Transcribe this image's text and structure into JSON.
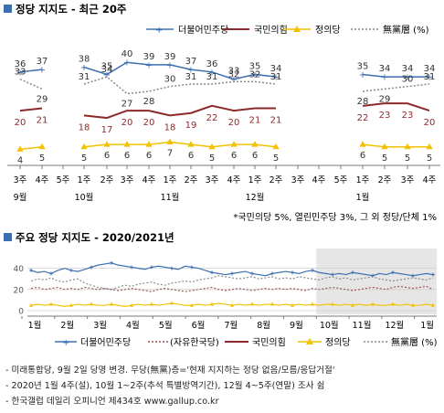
{
  "chart_data": [
    {
      "type": "line",
      "title": "정당 지지도 - 최근 20주",
      "note": "*국민의당 5%, 열린민주당 3%, 그 외 정당/단체 1%",
      "x_week_labels": [
        "3주",
        "4주",
        "5주",
        "1주",
        "2주",
        "3주",
        "4주",
        "1주",
        "2주",
        "3주",
        "4주",
        "1주",
        "2주",
        "3주",
        "4주",
        "5주",
        "1주",
        "2주",
        "3주",
        "4주"
      ],
      "x_month_labels": [
        {
          "at": 0,
          "label": "9월"
        },
        {
          "at": 3,
          "label": "10월"
        },
        {
          "at": 7,
          "label": "11월"
        },
        {
          "at": 11,
          "label": "12월"
        },
        {
          "at": 16,
          "label": "1월"
        }
      ],
      "x_gaps_after": [
        6,
        13
      ],
      "ylim": [
        0,
        45
      ],
      "series": [
        {
          "name": "더불어민주당",
          "color": "#3d6fb0",
          "marker": "plus",
          "values": [
            36,
            37,
            null,
            38,
            35,
            40,
            39,
            39,
            37,
            36,
            33,
            35,
            34,
            null,
            null,
            null,
            35,
            34,
            34,
            34
          ],
          "labels": [
            36,
            37,
            null,
            38,
            35,
            40,
            39,
            39,
            37,
            36,
            33,
            35,
            34,
            null,
            null,
            null,
            35,
            34,
            34,
            34
          ]
        },
        {
          "name": "국민의힘",
          "color": "#8c2a2a",
          "marker": "none",
          "values": [
            20,
            21,
            null,
            18,
            17,
            20,
            20,
            18,
            19,
            22,
            20,
            21,
            21,
            null,
            null,
            null,
            22,
            23,
            23,
            20
          ],
          "labels": [
            20,
            21,
            null,
            18,
            17,
            20,
            20,
            18,
            19,
            22,
            20,
            21,
            21,
            null,
            null,
            null,
            22,
            23,
            23,
            20
          ]
        },
        {
          "name": "정의당",
          "color": "#f2c200",
          "marker": "triangle",
          "values": [
            4,
            5,
            null,
            5,
            6,
            6,
            6,
            7,
            6,
            5,
            6,
            6,
            5,
            null,
            null,
            null,
            6,
            5,
            5,
            5
          ],
          "labels": [
            4,
            5,
            null,
            5,
            6,
            6,
            6,
            7,
            6,
            5,
            6,
            6,
            5,
            null,
            null,
            null,
            6,
            5,
            5,
            5
          ]
        },
        {
          "name": "無黨層 (%)",
          "color": "#8a8a8a",
          "marker": "none",
          "dash": true,
          "values": [
            33,
            29,
            null,
            31,
            34,
            27,
            28,
            30,
            31,
            31,
            32,
            32,
            31,
            null,
            null,
            null,
            28,
            29,
            30,
            31
          ],
          "labels": [
            33,
            29,
            null,
            31,
            34,
            27,
            28,
            30,
            31,
            31,
            32,
            32,
            31,
            null,
            null,
            null,
            28,
            29,
            30,
            31
          ]
        }
      ]
    },
    {
      "type": "line",
      "title": "주요 정당 지지도 - 2020/2021년",
      "x_month_labels": [
        "1월",
        "2월",
        "3월",
        "4월",
        "5월",
        "6월",
        "7월",
        "8월",
        "9월",
        "10월",
        "11월",
        "12월",
        "1월"
      ],
      "y_ticks": [
        0,
        20,
        40
      ],
      "ylim": [
        0,
        50
      ],
      "highlight_from_month_index": 9,
      "series": [
        {
          "name": "더불어민주당",
          "color": "#3d6fb0",
          "values": [
            38,
            36,
            37,
            35,
            38,
            40,
            38,
            37,
            39,
            41,
            43,
            44,
            45,
            43,
            42,
            41,
            40,
            39,
            41,
            42,
            41,
            40,
            39,
            42,
            41,
            40,
            38,
            36,
            35,
            34,
            35,
            36,
            37,
            35,
            34,
            33,
            35,
            36,
            37,
            36,
            35,
            37,
            38,
            36,
            35,
            34,
            35,
            34,
            36,
            35,
            34,
            33,
            35,
            34,
            36,
            35,
            34,
            33,
            34,
            35,
            34
          ]
        },
        {
          "name": "(자유한국당)",
          "color": "#a05555",
          "dash": true,
          "values": [
            21,
            22,
            20,
            21,
            22,
            20,
            21,
            20,
            22,
            21,
            20,
            21,
            20,
            19,
            20,
            21,
            20,
            19,
            18,
            20,
            21,
            20,
            19,
            18,
            19,
            20,
            21,
            22,
            20,
            19,
            20,
            21,
            20,
            19,
            20,
            21,
            20,
            21,
            20,
            21,
            20,
            19,
            21,
            20,
            21,
            22,
            21,
            20,
            19,
            20,
            21,
            22,
            21,
            20,
            22,
            23,
            22,
            21,
            22,
            23,
            20
          ]
        },
        {
          "name": "국민의힘",
          "color": "#8c2a2a",
          "values": []
        },
        {
          "name": "정의당",
          "color": "#f2c200",
          "values": [
            5,
            6,
            5,
            6,
            5,
            4,
            5,
            6,
            5,
            6,
            5,
            5,
            6,
            5,
            4,
            5,
            6,
            5,
            6,
            5,
            6,
            7,
            6,
            5,
            5,
            6,
            5,
            6,
            7,
            6,
            5,
            6,
            5,
            6,
            5,
            6,
            6,
            5,
            6,
            5,
            6,
            5,
            6,
            5,
            6,
            6,
            5,
            6,
            5,
            6,
            5,
            6,
            5,
            5,
            6,
            5,
            6,
            5,
            5,
            6,
            5
          ]
        },
        {
          "name": "無黨層 (%)",
          "color": "#8a8a8a",
          "dash": true,
          "values": [
            28,
            30,
            29,
            31,
            28,
            27,
            29,
            30,
            26,
            24,
            22,
            21,
            20,
            22,
            24,
            23,
            25,
            26,
            27,
            25,
            24,
            26,
            27,
            28,
            27,
            29,
            30,
            31,
            33,
            32,
            31,
            30,
            31,
            32,
            30,
            31,
            32,
            30,
            31,
            30,
            32,
            31,
            30,
            29,
            31,
            32,
            30,
            31,
            29,
            30,
            31,
            32,
            30,
            29,
            28,
            29,
            30,
            31,
            30,
            29,
            31
          ]
        }
      ]
    }
  ],
  "legend2_labels": [
    "더불어민주당",
    "(자유한국당)",
    "국민의힘",
    "정의당",
    "無黨層 (%)"
  ],
  "footnotes": [
    "- 미래통합당, 9월 2일 당명 변경. 무당(無黨)층='현재 지지하는 정당 없음/모름/응답거절'",
    "- 2020년 1월 4주(설), 10월 1~2주(추석 특별방역기간), 12월 4~5주(연말) 조사 쉼",
    "- 한국갤럽 데일리 오피니언 제434호 www.gallup.co.kr"
  ]
}
